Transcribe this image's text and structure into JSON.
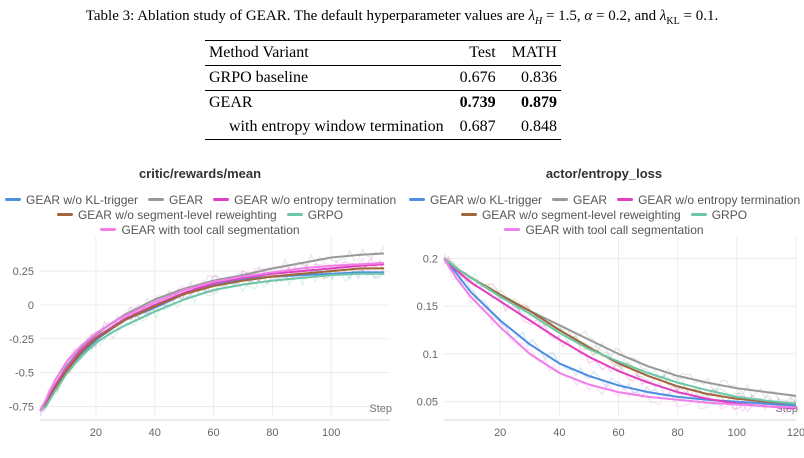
{
  "caption": {
    "prefix": "Table 3: Ablation study of GEAR. The default hyperparameter values are ",
    "lambda_h_val": "1.5",
    "alpha_val": "0.2",
    "lambda_kl_val": "0.1"
  },
  "table": {
    "headers": [
      "Method Variant",
      "Test",
      "MATH"
    ],
    "rows": [
      {
        "name": "GRPO baseline",
        "test": "0.676",
        "math": "0.836"
      },
      {
        "name": "GEAR",
        "test": "0.739",
        "math": "0.879"
      },
      {
        "name": "with entropy window termination",
        "test": "0.687",
        "math": "0.848"
      }
    ]
  },
  "chart_data": [
    {
      "type": "line",
      "title": "critic/rewards/mean",
      "xlabel": "Step",
      "ylabel": "",
      "xlim": [
        1,
        120
      ],
      "ylim": [
        -0.82,
        0.45
      ],
      "xticks": [
        20,
        40,
        60,
        80,
        100
      ],
      "yticks": [
        0.25,
        0,
        -0.25,
        -0.5,
        -0.75
      ],
      "ytick_labels": [
        "0.25",
        "0",
        "-0.25",
        "-0.5",
        "-0.75"
      ],
      "series": [
        {
          "name": "GEAR w/o KL-trigger",
          "color": "#4c8fe0",
          "x": [
            1,
            3,
            6,
            10,
            15,
            20,
            25,
            30,
            40,
            50,
            60,
            70,
            80,
            90,
            100,
            110,
            118
          ],
          "y": [
            -0.78,
            -0.74,
            -0.62,
            -0.48,
            -0.36,
            -0.26,
            -0.18,
            -0.11,
            -0.02,
            0.08,
            0.15,
            0.19,
            0.21,
            0.22,
            0.23,
            0.24,
            0.24
          ]
        },
        {
          "name": "GEAR",
          "color": "#999999",
          "x": [
            1,
            3,
            6,
            10,
            15,
            20,
            25,
            30,
            40,
            50,
            60,
            70,
            80,
            90,
            100,
            110,
            118
          ],
          "y": [
            -0.78,
            -0.72,
            -0.6,
            -0.45,
            -0.32,
            -0.22,
            -0.14,
            -0.07,
            0.04,
            0.12,
            0.18,
            0.22,
            0.27,
            0.31,
            0.35,
            0.37,
            0.38
          ]
        },
        {
          "name": "GEAR w/o entropy termination",
          "color": "#e040c0",
          "x": [
            1,
            3,
            6,
            10,
            15,
            20,
            25,
            30,
            40,
            50,
            60,
            70,
            80,
            90,
            100,
            110,
            118
          ],
          "y": [
            -0.78,
            -0.73,
            -0.6,
            -0.47,
            -0.33,
            -0.24,
            -0.17,
            -0.1,
            0.0,
            0.09,
            0.16,
            0.2,
            0.23,
            0.25,
            0.27,
            0.29,
            0.3
          ]
        },
        {
          "name": "GEAR w/o segment-level reweighting",
          "color": "#a0663a",
          "x": [
            1,
            3,
            6,
            10,
            15,
            20,
            25,
            30,
            40,
            50,
            60,
            70,
            80,
            90,
            100,
            110,
            118
          ],
          "y": [
            -0.78,
            -0.74,
            -0.62,
            -0.49,
            -0.35,
            -0.25,
            -0.18,
            -0.11,
            -0.01,
            0.08,
            0.14,
            0.18,
            0.21,
            0.23,
            0.25,
            0.27,
            0.27
          ]
        },
        {
          "name": "GRPO",
          "color": "#6cc6a8",
          "x": [
            1,
            3,
            6,
            10,
            15,
            20,
            25,
            30,
            40,
            50,
            60,
            70,
            80,
            90,
            100,
            110,
            118
          ],
          "y": [
            -0.78,
            -0.75,
            -0.64,
            -0.51,
            -0.38,
            -0.28,
            -0.21,
            -0.15,
            -0.05,
            0.04,
            0.11,
            0.15,
            0.18,
            0.2,
            0.22,
            0.23,
            0.23
          ]
        },
        {
          "name": "GEAR with tool call segmentation",
          "color": "#f080e8",
          "x": [
            1,
            3,
            6,
            10,
            15,
            20,
            25,
            30,
            40,
            50,
            60,
            70,
            80,
            90,
            100,
            110,
            118
          ],
          "y": [
            -0.78,
            -0.7,
            -0.56,
            -0.42,
            -0.3,
            -0.21,
            -0.14,
            -0.08,
            0.02,
            0.11,
            0.17,
            0.21,
            0.24,
            0.27,
            0.29,
            0.3,
            0.31
          ]
        }
      ]
    },
    {
      "type": "line",
      "title": "actor/entropy_loss",
      "xlabel": "Step",
      "ylabel": "",
      "xlim": [
        1,
        120
      ],
      "ylim": [
        0.035,
        0.215
      ],
      "xticks": [
        20,
        40,
        60,
        80,
        100,
        120
      ],
      "yticks": [
        0.2,
        0.15,
        0.1,
        0.05
      ],
      "ytick_labels": [
        "0.2",
        "0.15",
        "0.1",
        "0.05"
      ],
      "series": [
        {
          "name": "GEAR w/o KL-trigger",
          "color": "#4c8fe0",
          "x": [
            1,
            5,
            10,
            20,
            30,
            40,
            50,
            60,
            70,
            80,
            90,
            100,
            110,
            120
          ],
          "y": [
            0.2,
            0.185,
            0.165,
            0.135,
            0.11,
            0.09,
            0.077,
            0.067,
            0.06,
            0.055,
            0.052,
            0.05,
            0.048,
            0.046
          ]
        },
        {
          "name": "GEAR",
          "color": "#999999",
          "x": [
            1,
            5,
            10,
            20,
            30,
            40,
            50,
            60,
            70,
            80,
            90,
            100,
            110,
            120
          ],
          "y": [
            0.2,
            0.19,
            0.18,
            0.16,
            0.145,
            0.13,
            0.115,
            0.1,
            0.087,
            0.077,
            0.07,
            0.064,
            0.06,
            0.056
          ]
        },
        {
          "name": "GEAR w/o entropy termination",
          "color": "#e040c0",
          "x": [
            1,
            5,
            10,
            20,
            30,
            40,
            50,
            60,
            70,
            80,
            90,
            100,
            110,
            120
          ],
          "y": [
            0.2,
            0.188,
            0.175,
            0.155,
            0.135,
            0.115,
            0.097,
            0.082,
            0.07,
            0.06,
            0.053,
            0.048,
            0.045,
            0.043
          ]
        },
        {
          "name": "GEAR w/o segment-level reweighting",
          "color": "#a0663a",
          "x": [
            1,
            5,
            10,
            20,
            30,
            40,
            50,
            60,
            70,
            80,
            90,
            100,
            110,
            120
          ],
          "y": [
            0.2,
            0.19,
            0.18,
            0.162,
            0.145,
            0.125,
            0.107,
            0.09,
            0.077,
            0.066,
            0.058,
            0.053,
            0.05,
            0.048
          ]
        },
        {
          "name": "GRPO",
          "color": "#6cc6a8",
          "x": [
            1,
            5,
            10,
            20,
            30,
            40,
            50,
            60,
            70,
            80,
            90,
            100,
            110,
            120
          ],
          "y": [
            0.2,
            0.19,
            0.18,
            0.16,
            0.142,
            0.122,
            0.105,
            0.092,
            0.08,
            0.07,
            0.062,
            0.055,
            0.051,
            0.048
          ]
        },
        {
          "name": "GEAR with tool call segmentation",
          "color": "#f080e8",
          "x": [
            1,
            5,
            10,
            20,
            30,
            40,
            50,
            60,
            70,
            80,
            90,
            100,
            110,
            120
          ],
          "y": [
            0.2,
            0.18,
            0.16,
            0.128,
            0.1,
            0.08,
            0.068,
            0.06,
            0.055,
            0.052,
            0.049,
            0.047,
            0.045,
            0.044
          ]
        }
      ]
    }
  ]
}
